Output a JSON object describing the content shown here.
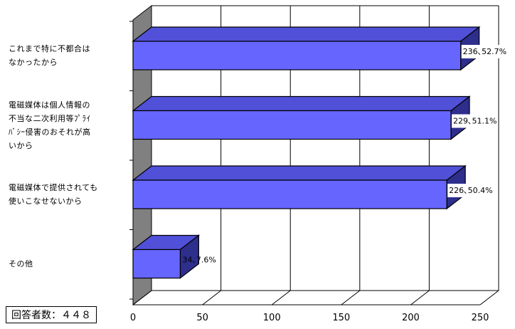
{
  "chart_data": {
    "type": "bar",
    "orientation": "horizontal",
    "style": "3d",
    "categories": [
      [
        "これまで特に不都合は",
        "なかったから"
      ],
      [
        "電磁媒体は個人情報の",
        "不当な二次利用等ﾌﾟﾗｲ",
        "ﾊﾞｼｰ侵害のおそれが高",
        "いから"
      ],
      [
        "電磁媒体で提供されても",
        "使いこなせないから"
      ],
      [
        "その他"
      ]
    ],
    "values": [
      236,
      229,
      226,
      34
    ],
    "data_labels": [
      "236､52.7%",
      "229､51.1%",
      "226､50.4%",
      "34､7.6%"
    ],
    "xlim": [
      0,
      250
    ],
    "xticks": [
      "0",
      "50",
      "100",
      "150",
      "200",
      "250"
    ],
    "grid": true,
    "colors": {
      "bar_front": "#6666ff",
      "bar_top": "#5050d8",
      "bar_side": "#2e2e8c",
      "wall": "#808080",
      "grid": "#000000"
    }
  },
  "note": "回答者数：４４８"
}
